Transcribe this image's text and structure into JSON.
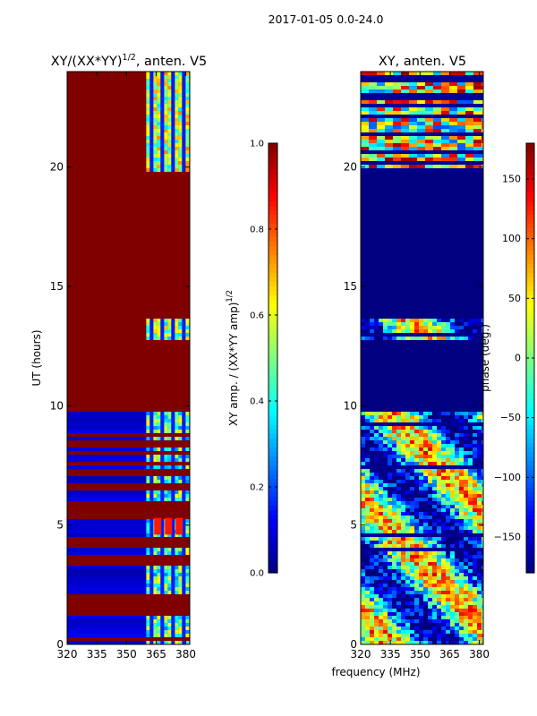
{
  "figure_title": "2017-01-05 0.0-24.0",
  "colors": {
    "jet": [
      "#00007f",
      "#0000ff",
      "#007fff",
      "#00ffff",
      "#7fff7f",
      "#ffff00",
      "#ff7f00",
      "#ff0000",
      "#7f0000"
    ],
    "saturated": "#800000",
    "deep_blue": "#000080"
  },
  "chart_data": [
    {
      "type": "heatmap",
      "title_main": "XY/(XX*YY)",
      "title_sup": "1/2",
      "title_tail": ", anten. V5",
      "xlabel": "",
      "ylabel": "UT (hours)",
      "xlim": [
        320,
        382
      ],
      "ylim": [
        0,
        24
      ],
      "xticks": [
        320,
        335,
        350,
        365,
        380
      ],
      "yticks": [
        0,
        5,
        10,
        15,
        20
      ],
      "colorbar": {
        "label_main": "XY amp. / (XX*YY amp)",
        "label_sup": "1/2",
        "range": [
          0.0,
          1.0
        ],
        "ticks": [
          "0.0",
          "0.2",
          "0.4",
          "0.6",
          "0.8",
          "1.0"
        ],
        "tick_values": [
          0.0,
          0.2,
          0.4,
          0.6,
          0.8,
          1.0
        ]
      },
      "regions": [
        {
          "ut": [
            0.0,
            9.7
          ],
          "level": 0.05,
          "high_band_mhz": [
            360,
            380
          ],
          "level_high": 0.45
        },
        {
          "ut": [
            9.7,
            12.8
          ],
          "level": 1.0
        },
        {
          "ut": [
            12.8,
            13.7
          ],
          "level": 1.0,
          "high_band_mhz": [
            360,
            380
          ],
          "level_high": 0.5
        },
        {
          "ut": [
            13.7,
            19.8
          ],
          "level": 1.0
        },
        {
          "ut": [
            19.8,
            24.0
          ],
          "level": 1.0,
          "high_band_mhz": [
            360,
            380
          ],
          "level_high": 0.55
        }
      ],
      "flagged_rows_ut": [
        0.2,
        1.3,
        1.5,
        1.8,
        2.0,
        3.4,
        3.6,
        4.2,
        4.4,
        5.4,
        5.7,
        5.9,
        6.6,
        7.1,
        7.3,
        7.6,
        8.0,
        8.4,
        8.8
      ],
      "red_patches": {
        "ut": [
          4.6,
          5.3
        ],
        "mhz": [
          364,
          380
        ],
        "level": 0.85
      }
    },
    {
      "type": "heatmap",
      "title": "XY, anten. V5",
      "xlabel": "frequency (MHz)",
      "ylabel": "",
      "xlim": [
        320,
        382
      ],
      "ylim": [
        0,
        24
      ],
      "xticks": [
        320,
        335,
        350,
        365,
        380
      ],
      "yticks": [
        0,
        5,
        10,
        15,
        20
      ],
      "colorbar": {
        "label": "phase (deg.)",
        "range": [
          -180,
          180
        ],
        "ticks": [
          "−150",
          "−100",
          "−50",
          "0",
          "50",
          "100",
          "150"
        ],
        "tick_values": [
          -150,
          -100,
          -50,
          0,
          50,
          100,
          150
        ]
      },
      "regions": [
        {
          "ut": [
            0.0,
            9.7
          ],
          "pattern": "noisy-phase"
        },
        {
          "ut": [
            9.7,
            12.8
          ],
          "pattern": "flat",
          "value": -180
        },
        {
          "ut": [
            12.8,
            13.7
          ],
          "pattern": "noisy-phase"
        },
        {
          "ut": [
            13.7,
            19.8
          ],
          "pattern": "flat",
          "value": -180
        },
        {
          "ut": [
            19.8,
            24.0
          ],
          "pattern": "striped-phase"
        }
      ]
    }
  ]
}
